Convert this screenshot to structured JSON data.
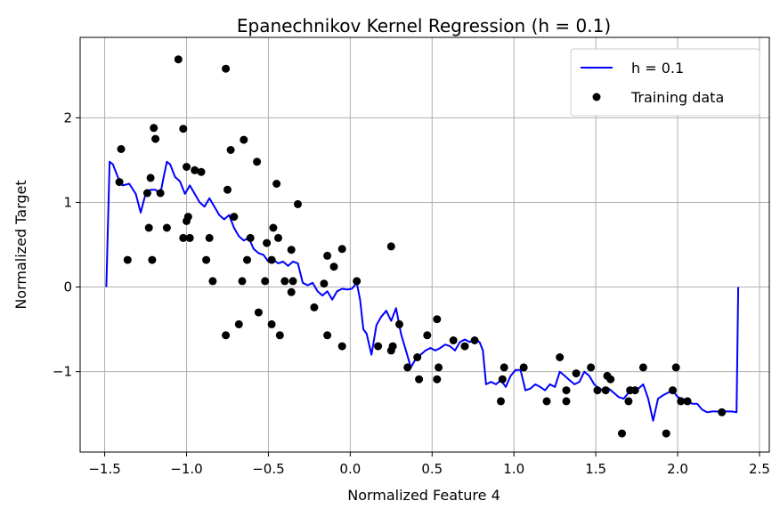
{
  "chart_data": {
    "type": "line",
    "title": "Epanechnikov Kernel Regression (h = 0.1)",
    "xlabel": "Normalized Feature 4",
    "ylabel": "Normalized Target",
    "xlim": [
      -1.65,
      2.56
    ],
    "ylim": [
      -1.95,
      2.95
    ],
    "xticks": [
      -1.5,
      -1.0,
      -0.5,
      0.0,
      0.5,
      1.0,
      1.5,
      2.0,
      2.5
    ],
    "xtick_labels": [
      "−1.5",
      "−1.0",
      "−0.5",
      "0.0",
      "0.5",
      "1.0",
      "1.5",
      "2.0",
      "2.5"
    ],
    "yticks": [
      -1,
      0,
      1,
      2
    ],
    "ytick_labels": [
      "−1",
      "0",
      "1",
      "2"
    ],
    "grid": true,
    "legend_position": "top-right",
    "series": [
      {
        "name": "h = 0.1",
        "type": "line",
        "color": "#0000ff",
        "x": [
          -1.49,
          -1.47,
          -1.45,
          -1.42,
          -1.39,
          -1.35,
          -1.31,
          -1.28,
          -1.25,
          -1.22,
          -1.19,
          -1.16,
          -1.14,
          -1.12,
          -1.1,
          -1.07,
          -1.04,
          -1.01,
          -0.98,
          -0.95,
          -0.92,
          -0.89,
          -0.86,
          -0.83,
          -0.8,
          -0.77,
          -0.74,
          -0.71,
          -0.68,
          -0.65,
          -0.62,
          -0.59,
          -0.56,
          -0.53,
          -0.5,
          -0.47,
          -0.44,
          -0.41,
          -0.38,
          -0.35,
          -0.32,
          -0.29,
          -0.26,
          -0.23,
          -0.2,
          -0.17,
          -0.14,
          -0.11,
          -0.08,
          -0.05,
          -0.02,
          0.01,
          0.04,
          0.06,
          0.08,
          0.1,
          0.13,
          0.16,
          0.19,
          0.22,
          0.25,
          0.28,
          0.31,
          0.34,
          0.37,
          0.4,
          0.43,
          0.46,
          0.49,
          0.52,
          0.55,
          0.58,
          0.61,
          0.64,
          0.67,
          0.7,
          0.73,
          0.76,
          0.79,
          0.81,
          0.83,
          0.86,
          0.89,
          0.92,
          0.95,
          0.98,
          1.01,
          1.04,
          1.07,
          1.1,
          1.13,
          1.16,
          1.19,
          1.22,
          1.25,
          1.28,
          1.31,
          1.34,
          1.37,
          1.4,
          1.43,
          1.46,
          1.49,
          1.52,
          1.55,
          1.58,
          1.61,
          1.64,
          1.67,
          1.7,
          1.73,
          1.76,
          1.79,
          1.82,
          1.85,
          1.88,
          1.91,
          1.94,
          1.97,
          2.0,
          2.03,
          2.06,
          2.09,
          2.12,
          2.15,
          2.18,
          2.21,
          2.24,
          2.27,
          2.3,
          2.33,
          2.36,
          2.37
        ],
        "y": [
          0.0,
          1.48,
          1.45,
          1.3,
          1.2,
          1.22,
          1.1,
          0.88,
          1.1,
          1.15,
          1.15,
          1.1,
          1.3,
          1.48,
          1.45,
          1.3,
          1.25,
          1.1,
          1.2,
          1.1,
          1.0,
          0.95,
          1.05,
          0.95,
          0.85,
          0.8,
          0.85,
          0.7,
          0.6,
          0.55,
          0.58,
          0.45,
          0.4,
          0.38,
          0.3,
          0.32,
          0.28,
          0.3,
          0.25,
          0.3,
          0.28,
          0.05,
          0.02,
          0.05,
          -0.05,
          -0.1,
          -0.05,
          -0.15,
          -0.05,
          -0.02,
          -0.03,
          -0.02,
          0.05,
          -0.15,
          -0.5,
          -0.55,
          -0.8,
          -0.45,
          -0.35,
          -0.28,
          -0.4,
          -0.25,
          -0.55,
          -0.75,
          -0.95,
          -0.85,
          -0.8,
          -0.75,
          -0.72,
          -0.75,
          -0.72,
          -0.68,
          -0.7,
          -0.75,
          -0.65,
          -0.62,
          -0.65,
          -0.62,
          -0.65,
          -0.75,
          -1.15,
          -1.12,
          -1.15,
          -1.1,
          -1.18,
          -1.05,
          -0.98,
          -0.98,
          -1.22,
          -1.2,
          -1.15,
          -1.18,
          -1.22,
          -1.15,
          -1.18,
          -1.0,
          -1.05,
          -1.1,
          -1.15,
          -1.12,
          -1.0,
          -1.05,
          -1.15,
          -1.2,
          -1.22,
          -1.2,
          -1.25,
          -1.3,
          -1.32,
          -1.25,
          -1.22,
          -1.2,
          -1.15,
          -1.32,
          -1.58,
          -1.32,
          -1.28,
          -1.25,
          -1.22,
          -1.3,
          -1.32,
          -1.35,
          -1.38,
          -1.38,
          -1.45,
          -1.48,
          -1.47,
          -1.47,
          -1.47,
          -1.47,
          -1.47,
          -1.48,
          0.0
        ]
      },
      {
        "name": "Training data",
        "type": "scatter",
        "color": "#000000",
        "points": [
          [
            -1.4,
            1.63
          ],
          [
            -1.41,
            1.24
          ],
          [
            -1.36,
            0.32
          ],
          [
            -1.24,
            1.11
          ],
          [
            -1.23,
            0.7
          ],
          [
            -1.22,
            1.29
          ],
          [
            -1.21,
            0.32
          ],
          [
            -1.2,
            1.88
          ],
          [
            -1.19,
            1.75
          ],
          [
            -1.16,
            1.11
          ],
          [
            -1.12,
            0.7
          ],
          [
            -1.05,
            2.69
          ],
          [
            -1.02,
            0.58
          ],
          [
            -1.02,
            1.87
          ],
          [
            -1.0,
            1.42
          ],
          [
            -1.0,
            0.78
          ],
          [
            -0.99,
            0.83
          ],
          [
            -0.98,
            0.58
          ],
          [
            -0.95,
            1.38
          ],
          [
            -0.91,
            1.36
          ],
          [
            -0.88,
            0.32
          ],
          [
            -0.86,
            0.58
          ],
          [
            -0.84,
            0.07
          ],
          [
            -0.76,
            2.58
          ],
          [
            -0.76,
            -0.57
          ],
          [
            -0.75,
            1.15
          ],
          [
            -0.73,
            1.62
          ],
          [
            -0.71,
            0.83
          ],
          [
            -0.68,
            -0.44
          ],
          [
            -0.66,
            0.07
          ],
          [
            -0.65,
            1.74
          ],
          [
            -0.63,
            0.32
          ],
          [
            -0.61,
            0.58
          ],
          [
            -0.57,
            1.48
          ],
          [
            -0.56,
            -0.3
          ],
          [
            -0.52,
            0.07
          ],
          [
            -0.51,
            0.52
          ],
          [
            -0.48,
            -0.44
          ],
          [
            -0.48,
            0.32
          ],
          [
            -0.47,
            0.7
          ],
          [
            -0.45,
            1.22
          ],
          [
            -0.44,
            0.58
          ],
          [
            -0.43,
            -0.57
          ],
          [
            -0.4,
            0.07
          ],
          [
            -0.36,
            -0.06
          ],
          [
            -0.36,
            0.44
          ],
          [
            -0.35,
            0.07
          ],
          [
            -0.32,
            0.98
          ],
          [
            -0.22,
            -0.24
          ],
          [
            -0.16,
            0.04
          ],
          [
            -0.14,
            0.37
          ],
          [
            -0.14,
            -0.57
          ],
          [
            -0.1,
            0.24
          ],
          [
            -0.05,
            0.45
          ],
          [
            -0.05,
            -0.7
          ],
          [
            0.04,
            0.07
          ],
          [
            0.17,
            -0.7
          ],
          [
            0.25,
            0.48
          ],
          [
            0.25,
            -0.75
          ],
          [
            0.26,
            -0.7
          ],
          [
            0.3,
            -0.44
          ],
          [
            0.35,
            -0.95
          ],
          [
            0.41,
            -0.83
          ],
          [
            0.42,
            -1.09
          ],
          [
            0.47,
            -0.57
          ],
          [
            0.53,
            -0.38
          ],
          [
            0.53,
            -1.09
          ],
          [
            0.54,
            -0.95
          ],
          [
            0.63,
            -0.63
          ],
          [
            0.7,
            -0.7
          ],
          [
            0.76,
            -0.63
          ],
          [
            0.92,
            -1.35
          ],
          [
            0.93,
            -1.09
          ],
          [
            0.94,
            -0.95
          ],
          [
            1.06,
            -0.95
          ],
          [
            1.2,
            -1.35
          ],
          [
            1.28,
            -0.83
          ],
          [
            1.32,
            -1.22
          ],
          [
            1.32,
            -1.35
          ],
          [
            1.38,
            -1.02
          ],
          [
            1.47,
            -0.95
          ],
          [
            1.51,
            -1.22
          ],
          [
            1.56,
            -1.22
          ],
          [
            1.57,
            -1.05
          ],
          [
            1.59,
            -1.09
          ],
          [
            1.66,
            -1.73
          ],
          [
            1.7,
            -1.35
          ],
          [
            1.71,
            -1.22
          ],
          [
            1.74,
            -1.22
          ],
          [
            1.79,
            -0.95
          ],
          [
            1.93,
            -1.73
          ],
          [
            1.97,
            -1.22
          ],
          [
            1.99,
            -0.95
          ],
          [
            2.02,
            -1.35
          ],
          [
            2.06,
            -1.35
          ],
          [
            2.27,
            -1.48
          ]
        ]
      }
    ]
  }
}
